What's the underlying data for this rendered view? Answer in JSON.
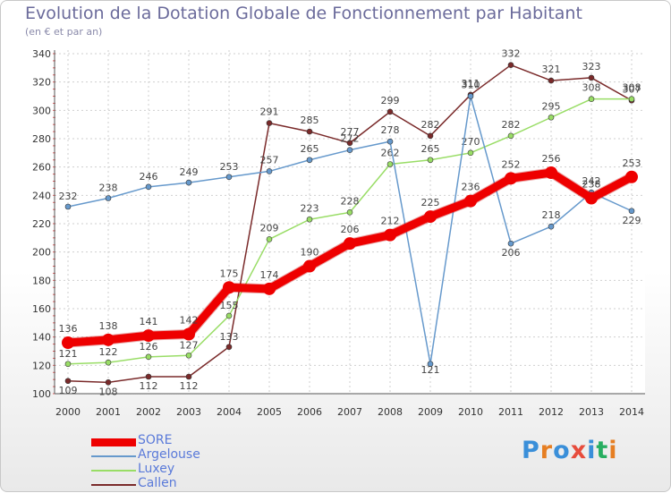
{
  "title": "Evolution de la Dotation Globale de Fonctionnement par Habitant",
  "subtitle": "(en € et par an)",
  "logo": "Proxiti",
  "chart_data": {
    "type": "line",
    "title": "Evolution de la Dotation Globale de Fonctionnement par Habitant",
    "subtitle": "(en € et par an)",
    "x": [
      "2000",
      "2001",
      "2002",
      "2003",
      "2004",
      "2005",
      "2006",
      "2007",
      "2008",
      "2009",
      "2010",
      "2011",
      "2012",
      "2013",
      "2014"
    ],
    "ylim": [
      100,
      340
    ],
    "yticks": [
      100,
      120,
      140,
      160,
      180,
      200,
      220,
      240,
      260,
      280,
      300,
      320,
      340
    ],
    "grid": true,
    "legend_position": "bottom-left",
    "series": [
      {
        "name": "Callen",
        "color": "#7a2a2a",
        "values": [
          109,
          108,
          112,
          112,
          133,
          291,
          285,
          277,
          299,
          282,
          311,
          332,
          321,
          323,
          307
        ],
        "labels": [
          "109",
          "108",
          "112",
          "112",
          "133",
          "291",
          "285",
          "277",
          "299",
          "282",
          "311",
          "332",
          "321",
          "323",
          "307"
        ]
      },
      {
        "name": "Luxey",
        "color": "#99dd66",
        "values": [
          121,
          122,
          126,
          127,
          155,
          209,
          223,
          228,
          262,
          265,
          270,
          282,
          295,
          308,
          308
        ],
        "labels": [
          "121",
          "122",
          "126",
          "127",
          "155",
          "209",
          "223",
          "228",
          "262",
          "265",
          "270",
          "282",
          "295",
          "308",
          "308"
        ]
      },
      {
        "name": "Argelouse",
        "color": "#6699cc",
        "values": [
          232,
          238,
          246,
          249,
          253,
          257,
          265,
          272,
          278,
          121,
          310,
          206,
          218,
          242,
          229
        ],
        "labels": [
          "232",
          "238",
          "246",
          "249",
          "253",
          "257",
          "265",
          "272",
          "278",
          "121",
          "310",
          "206",
          "218",
          "242",
          "229"
        ]
      },
      {
        "name": "SORE",
        "color": "#ee0000",
        "values": [
          136,
          138,
          141,
          142,
          175,
          174,
          190,
          206,
          212,
          225,
          236,
          252,
          256,
          238,
          253
        ],
        "labels": [
          "136",
          "138",
          "141",
          "142",
          "175",
          "174",
          "190",
          "206",
          "212",
          "225",
          "236",
          "252",
          "256",
          "238",
          "253"
        ]
      }
    ],
    "legend": [
      "SORE",
      "Argelouse",
      "Luxey",
      "Callen"
    ]
  }
}
